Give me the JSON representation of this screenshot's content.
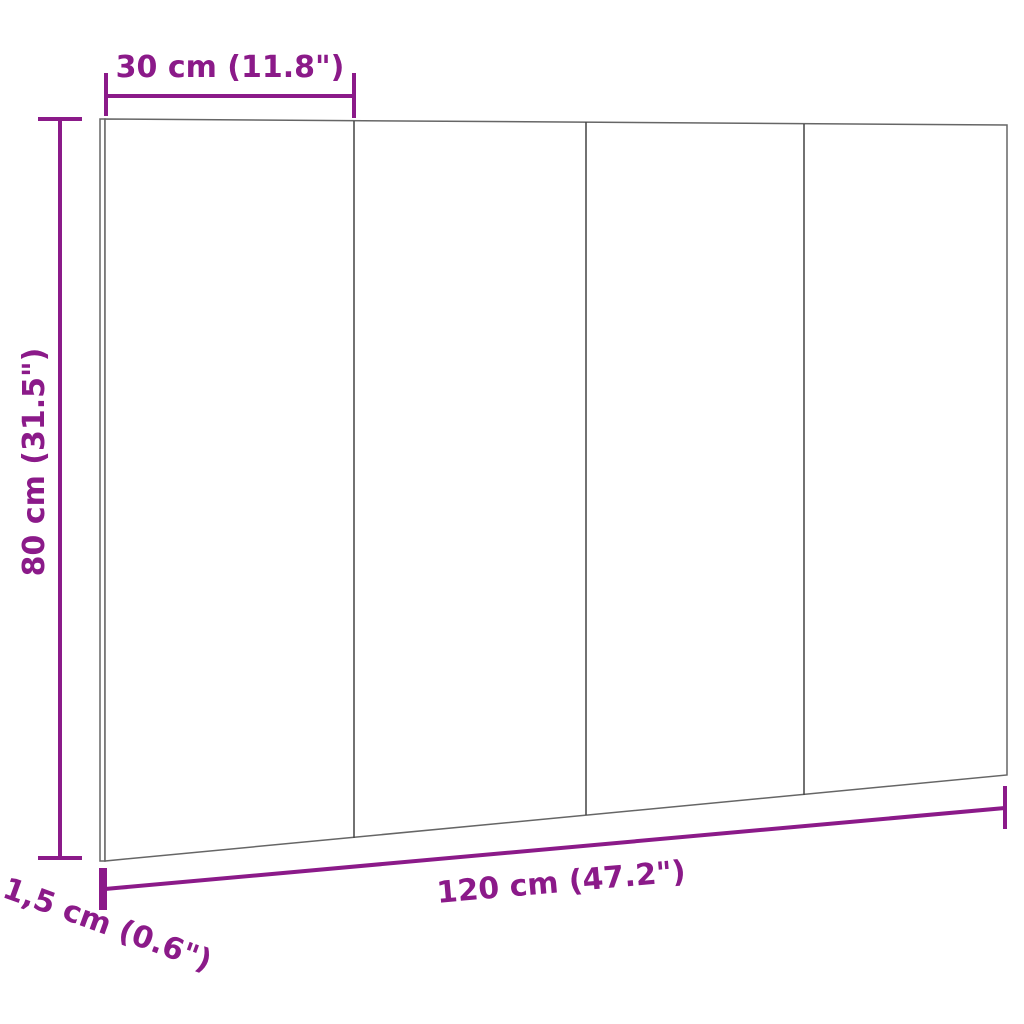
{
  "colors": {
    "dimension": "#8b1a89",
    "outline": "#555555",
    "panel": "#ffffff"
  },
  "dimensions": {
    "panel_width": "30 cm (11.8\")",
    "height": "80 cm (31.5\")",
    "width": "120 cm (47.2\")",
    "thickness": "1,5 cm (0.6\")"
  }
}
